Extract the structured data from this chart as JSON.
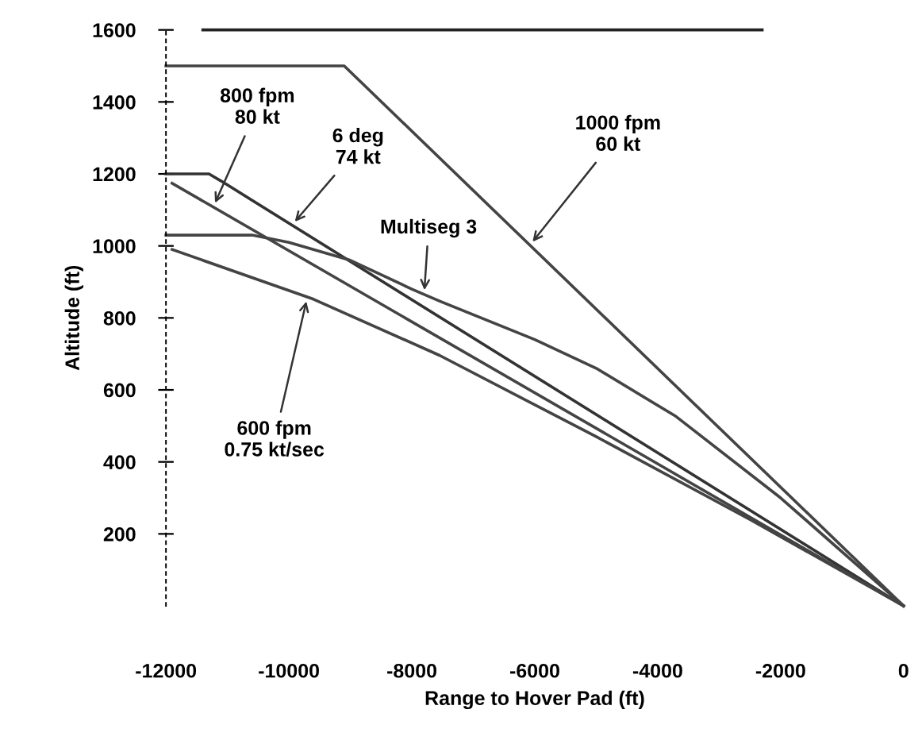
{
  "chart_data": {
    "type": "line",
    "xlabel": "Range to Hover Pad (ft)",
    "ylabel": "Altitude (ft)",
    "xlim": [
      -12000,
      0
    ],
    "ylim": [
      0,
      1600
    ],
    "xticks": [
      -12000,
      -10000,
      -8000,
      -6000,
      -4000,
      -2000,
      0
    ],
    "yticks": [
      200,
      400,
      600,
      800,
      1000,
      1200,
      1400,
      1600
    ],
    "grid": false,
    "legend": false,
    "marker": "none",
    "line_style": "solid",
    "series": [
      {
        "color": "#222222",
        "x": [
          -11400,
          -2300
        ],
        "values": [
          1600,
          1600
        ]
      },
      {
        "color": "#444444",
        "x": [
          -12000,
          -9100,
          0
        ],
        "values": [
          1500,
          1500,
          0
        ]
      },
      {
        "color": "#333333",
        "x": [
          -12000,
          -11300,
          -11100,
          0
        ],
        "values": [
          1200,
          1200,
          1180,
          0
        ]
      },
      {
        "color": "#444444",
        "x": [
          -11900,
          0
        ],
        "values": [
          1174,
          0
        ]
      },
      {
        "color": "#444444",
        "x": [
          -12000,
          -10600,
          -10000,
          -9000,
          -8000,
          -7550,
          -6000,
          -5000,
          -3700,
          -2000,
          0
        ],
        "values": [
          1030,
          1030,
          1010,
          960,
          880,
          847,
          740,
          660,
          526,
          300,
          0
        ]
      },
      {
        "color": "#444444",
        "x": [
          -11900,
          -9600,
          -7550,
          -5000,
          -2500,
          0
        ],
        "values": [
          990,
          852,
          696,
          470,
          240,
          0
        ]
      }
    ],
    "annotations": [
      {
        "text": "800 fpm\n80 kt",
        "x": -11230,
        "y": 1108
      },
      {
        "text": "6 deg\n74 kt",
        "x": -9950,
        "y": 1058
      },
      {
        "text": "Multiseg 3",
        "x": -7800,
        "y": 865
      },
      {
        "text": "1000 fpm\n60 kt",
        "x": -6080,
        "y": 1002
      },
      {
        "text": "600 fpm\n0.75 kt/sec",
        "x": -9700,
        "y": 858
      }
    ]
  }
}
